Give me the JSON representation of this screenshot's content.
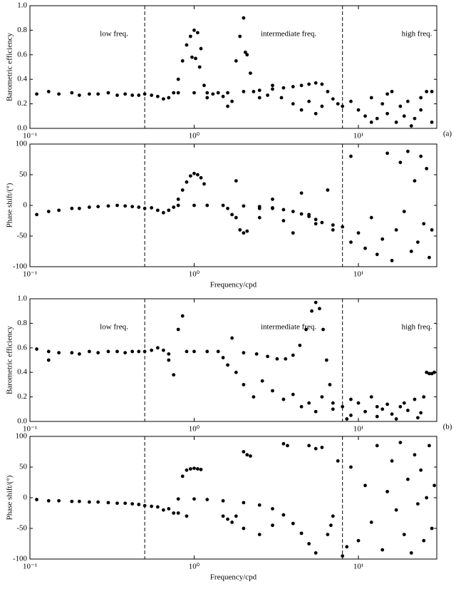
{
  "chart_data": [
    {
      "type": "scatter",
      "ylabel": "Barometric efficiency",
      "xlog": true,
      "xlim": [
        0.1,
        30
      ],
      "ylim": [
        0,
        1
      ],
      "xticks": [
        {
          "value": 0.1,
          "label": "10⁻¹"
        },
        {
          "value": 1,
          "label": "10⁰"
        },
        {
          "value": 10,
          "label": "10¹"
        }
      ],
      "yticks": [
        {
          "value": 0,
          "label": "0.0"
        },
        0.2,
        0.4,
        0.6,
        0.8,
        {
          "value": 1,
          "label": "1.0"
        }
      ],
      "vlines": [
        0.5,
        8
      ],
      "annotations": [
        "low freq.",
        "intermediate freq.",
        "high freq."
      ],
      "panel_label": "(a)",
      "color": "#000000",
      "x": [
        0.11,
        0.13,
        0.15,
        0.18,
        0.2,
        0.23,
        0.26,
        0.3,
        0.34,
        0.38,
        0.42,
        0.46,
        0.5,
        0.55,
        0.6,
        0.65,
        0.7,
        0.75,
        0.8,
        0.85,
        0.9,
        0.95,
        1.0,
        1.05,
        1.1,
        0.97,
        1.02,
        1.08,
        1.15,
        1.2,
        1.3,
        1.4,
        1.5,
        1.6,
        1.7,
        1.8,
        1.9,
        2.0,
        2.05,
        2.1,
        2.2,
        2.3,
        2.5,
        2.8,
        3.0,
        3.4,
        0.8,
        1.0,
        1.2,
        1.6,
        2.0,
        2.5,
        3.0,
        3.5,
        4.0,
        4.5,
        5.0,
        5.5,
        6.0,
        6.5,
        7.0,
        7.5,
        4.0,
        4.5,
        5.0,
        5.5,
        6.0,
        8.0,
        9,
        10,
        11,
        12,
        13,
        14,
        15,
        16,
        17,
        18,
        19,
        20,
        22,
        24,
        26,
        28,
        28,
        24,
        21,
        15,
        12
      ],
      "values": [
        0.28,
        0.3,
        0.28,
        0.29,
        0.27,
        0.28,
        0.28,
        0.29,
        0.27,
        0.28,
        0.27,
        0.27,
        0.28,
        0.27,
        0.26,
        0.24,
        0.25,
        0.29,
        0.4,
        0.55,
        0.68,
        0.75,
        0.8,
        0.78,
        0.65,
        0.58,
        0.57,
        0.5,
        0.35,
        0.25,
        0.28,
        0.29,
        0.26,
        0.18,
        0.22,
        0.55,
        0.75,
        0.9,
        0.62,
        0.6,
        0.45,
        0.3,
        0.25,
        0.27,
        0.35,
        0.25,
        0.29,
        0.29,
        0.29,
        0.29,
        0.3,
        0.31,
        0.32,
        0.33,
        0.34,
        0.35,
        0.36,
        0.37,
        0.36,
        0.3,
        0.24,
        0.2,
        0.2,
        0.15,
        0.22,
        0.12,
        0.18,
        0.18,
        0.22,
        0.15,
        0.1,
        0.25,
        0.08,
        0.2,
        0.12,
        0.3,
        0.05,
        0.18,
        0.1,
        0.22,
        0.08,
        0.15,
        0.3,
        0.3,
        0.05,
        0.25,
        0.02,
        0.28,
        0.05
      ]
    },
    {
      "type": "scatter",
      "ylabel": "Phase shift/(°)",
      "xlabel": "Frequency/cpd",
      "xlog": true,
      "xlim": [
        0.1,
        30
      ],
      "ylim": [
        -100,
        100
      ],
      "xticks": [
        {
          "value": 0.1,
          "label": "10⁻¹"
        },
        {
          "value": 1,
          "label": "10⁰"
        },
        {
          "value": 10,
          "label": "10¹"
        }
      ],
      "yticks": [
        -100,
        -50,
        0,
        50,
        100
      ],
      "vlines": [
        0.5,
        8
      ],
      "color": "#000000",
      "x": [
        0.11,
        0.13,
        0.15,
        0.18,
        0.2,
        0.23,
        0.26,
        0.3,
        0.34,
        0.38,
        0.42,
        0.46,
        0.5,
        0.55,
        0.6,
        0.65,
        0.7,
        0.75,
        0.8,
        0.85,
        0.9,
        0.95,
        1.0,
        1.05,
        1.1,
        1.15,
        0.8,
        1.0,
        1.2,
        1.5,
        1.6,
        1.7,
        1.8,
        1.9,
        2.0,
        2.1,
        1.8,
        2.5,
        2.5,
        3.0,
        2.0,
        2.5,
        3.0,
        3.5,
        4.0,
        4.5,
        5.0,
        5.5,
        6.0,
        7.0,
        3.0,
        3.5,
        4.0,
        4.5,
        5.0,
        5.5,
        6.5,
        7.0,
        8.0,
        9,
        9,
        10,
        11,
        12,
        13,
        14,
        15,
        16,
        17,
        18,
        19,
        20,
        21,
        22,
        23,
        24,
        25,
        26,
        27,
        28
      ],
      "values": [
        -15,
        -10,
        -8,
        -5,
        -5,
        -3,
        -2,
        -1,
        0,
        -1,
        -2,
        -3,
        -5,
        -4,
        -8,
        -12,
        -8,
        -3,
        10,
        25,
        38,
        48,
        52,
        50,
        45,
        35,
        0,
        0,
        0,
        0,
        -5,
        -15,
        -20,
        -40,
        -45,
        -42,
        40,
        -5,
        -20,
        -5,
        -1,
        -2,
        -4,
        -7,
        -10,
        -14,
        -18,
        -23,
        -28,
        -32,
        10,
        -25,
        -45,
        20,
        -15,
        -30,
        25,
        -40,
        -35,
        -60,
        80,
        -45,
        -70,
        -20,
        -80,
        -55,
        85,
        -90,
        -40,
        70,
        -10,
        88,
        -75,
        40,
        -60,
        80,
        -30,
        60,
        -85,
        -40
      ]
    },
    {
      "type": "scatter",
      "ylabel": "Barometric efficiency",
      "xlog": true,
      "xlim": [
        0.1,
        30
      ],
      "ylim": [
        0,
        1
      ],
      "xticks": [
        {
          "value": 0.1,
          "label": "10⁻¹"
        },
        {
          "value": 1,
          "label": "10⁰"
        },
        {
          "value": 10,
          "label": "10¹"
        }
      ],
      "yticks": [
        {
          "value": 0,
          "label": "0.0"
        },
        0.2,
        0.4,
        0.6,
        0.8,
        {
          "value": 1,
          "label": "1.0"
        }
      ],
      "vlines": [
        0.5,
        8
      ],
      "annotations": [
        "low freq.",
        "intermediate freq.",
        "high freq."
      ],
      "panel_label": "(b)",
      "color": "#000000",
      "x": [
        0.11,
        0.13,
        0.13,
        0.15,
        0.18,
        0.2,
        0.23,
        0.26,
        0.3,
        0.34,
        0.38,
        0.42,
        0.46,
        0.5,
        0.55,
        0.6,
        0.65,
        0.7,
        0.75,
        0.8,
        0.85,
        0.7,
        0.9,
        1.0,
        1.2,
        1.4,
        1.5,
        1.6,
        1.7,
        1.8,
        2.0,
        2.4,
        2.8,
        3.2,
        3.6,
        4.0,
        4.4,
        4.8,
        5.2,
        5.5,
        5.8,
        6.1,
        6.4,
        6.7,
        7.0,
        2.0,
        2.3,
        2.6,
        3.0,
        3.5,
        4.0,
        4.5,
        5.0,
        5.5,
        6.0,
        7.0,
        8.0,
        9,
        10,
        11,
        12,
        13,
        14,
        15,
        16,
        18,
        20,
        22,
        24,
        26,
        27,
        28,
        29,
        25,
        23,
        19,
        17,
        13,
        9,
        8.5
      ],
      "values": [
        0.59,
        0.57,
        0.5,
        0.56,
        0.56,
        0.55,
        0.57,
        0.56,
        0.57,
        0.57,
        0.56,
        0.57,
        0.57,
        0.57,
        0.58,
        0.6,
        0.58,
        0.5,
        0.38,
        0.75,
        0.86,
        0.55,
        0.57,
        0.57,
        0.57,
        0.57,
        0.52,
        0.46,
        0.68,
        0.4,
        0.56,
        0.55,
        0.53,
        0.51,
        0.51,
        0.54,
        0.62,
        0.75,
        0.9,
        0.97,
        0.92,
        0.75,
        0.5,
        0.3,
        0.15,
        0.3,
        0.2,
        0.33,
        0.25,
        0.18,
        0.22,
        0.12,
        0.15,
        0.08,
        0.2,
        0.1,
        0.12,
        0.05,
        0.15,
        0.08,
        0.2,
        0.04,
        0.1,
        0.14,
        0.06,
        0.12,
        0.09,
        0.18,
        0.07,
        0.4,
        0.39,
        0.39,
        0.4,
        0.2,
        0.03,
        0.15,
        0.02,
        0.12,
        0.18,
        0.02
      ]
    },
    {
      "type": "scatter",
      "ylabel": "Phase shift/(°)",
      "xlabel": "Frequency/cpd",
      "xlog": true,
      "xlim": [
        0.1,
        30
      ],
      "ylim": [
        -100,
        100
      ],
      "xticks": [
        {
          "value": 0.1,
          "label": "10⁻¹"
        },
        {
          "value": 1,
          "label": "10⁰"
        },
        {
          "value": 10,
          "label": "10¹"
        }
      ],
      "yticks": [
        -100,
        -50,
        0,
        50,
        100
      ],
      "vlines": [
        0.5,
        8
      ],
      "color": "#000000",
      "x": [
        0.11,
        0.13,
        0.15,
        0.18,
        0.2,
        0.23,
        0.26,
        0.3,
        0.34,
        0.38,
        0.42,
        0.46,
        0.5,
        0.55,
        0.6,
        0.65,
        0.7,
        0.75,
        0.8,
        0.85,
        0.9,
        0.95,
        1.0,
        1.05,
        1.1,
        0.8,
        0.9,
        1.0,
        1.2,
        1.5,
        1.5,
        1.6,
        1.7,
        1.8,
        2.0,
        2.1,
        2.2,
        2.0,
        2.5,
        3.0,
        2.0,
        2.5,
        3.0,
        3.5,
        4.0,
        4.5,
        5.0,
        5.5,
        3.5,
        3.7,
        5.0,
        5.5,
        6.0,
        6.5,
        7.0,
        8.0,
        9,
        10,
        11,
        12,
        13,
        14,
        15,
        16,
        17,
        18,
        19,
        20,
        21,
        22,
        23,
        24,
        25,
        26,
        27,
        28,
        29,
        8.5,
        7.5,
        6.8
      ],
      "values": [
        -3,
        -5,
        -5,
        -6,
        -6,
        -7,
        -7,
        -8,
        -9,
        -9,
        -10,
        -11,
        -13,
        -14,
        -15,
        -20,
        -18,
        -25,
        -2,
        35,
        45,
        47,
        48,
        47,
        46,
        -25,
        -30,
        -2,
        -3,
        -5,
        -30,
        -35,
        -40,
        -30,
        75,
        70,
        68,
        -50,
        -60,
        -45,
        -8,
        -12,
        -18,
        -28,
        -42,
        -58,
        -75,
        -90,
        88,
        85,
        85,
        80,
        82,
        -60,
        -30,
        -95,
        50,
        -70,
        20,
        -40,
        85,
        -85,
        10,
        60,
        -20,
        90,
        -60,
        30,
        -90,
        70,
        -10,
        45,
        -70,
        0,
        85,
        -50,
        20,
        -80,
        60,
        -45
      ]
    }
  ]
}
